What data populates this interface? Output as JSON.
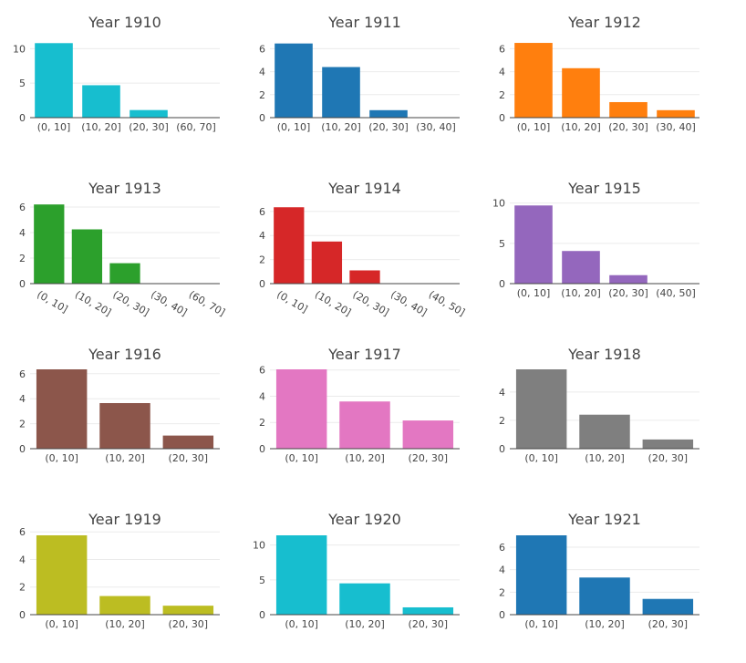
{
  "chart_data": [
    {
      "type": "bar",
      "title": "Year 1910",
      "categories": [
        "(0, 10]",
        "(10, 20]",
        "(20, 30]",
        "(60, 70]"
      ],
      "values": [
        10.8,
        4.7,
        1.1,
        0
      ],
      "ylim": [
        0,
        11.5
      ],
      "yticks": [
        0,
        5,
        10
      ],
      "color": "#17becf",
      "grid": true,
      "rotated_labels": false
    },
    {
      "type": "bar",
      "title": "Year 1911",
      "categories": [
        "(0, 10]",
        "(10, 20]",
        "(20, 30]",
        "(30, 40]"
      ],
      "values": [
        6.45,
        4.4,
        0.65,
        0
      ],
      "ylim": [
        0,
        6.9
      ],
      "yticks": [
        0,
        2,
        4,
        6
      ],
      "color": "#1f77b4",
      "grid": true,
      "rotated_labels": false
    },
    {
      "type": "bar",
      "title": "Year 1912",
      "categories": [
        "(0, 10]",
        "(10, 20]",
        "(20, 30]",
        "(30, 40]"
      ],
      "values": [
        6.5,
        4.3,
        1.35,
        0.65
      ],
      "ylim": [
        0,
        6.9
      ],
      "yticks": [
        0,
        2,
        4,
        6
      ],
      "color": "#ff7f0e",
      "grid": true,
      "rotated_labels": false
    },
    {
      "type": "bar",
      "title": "Year 1913",
      "categories": [
        "(0, 10]",
        "(10, 20]",
        "(20, 30]",
        "(30, 40]",
        "(60, 70]"
      ],
      "values": [
        6.2,
        4.25,
        1.6,
        0,
        0
      ],
      "ylim": [
        0,
        6.5
      ],
      "yticks": [
        0,
        2,
        4,
        6
      ],
      "color": "#2ca02c",
      "grid": true,
      "rotated_labels": true
    },
    {
      "type": "bar",
      "title": "Year 1914",
      "categories": [
        "(0, 10]",
        "(10, 20]",
        "(20, 30]",
        "(30, 40]",
        "(40, 50]"
      ],
      "values": [
        6.35,
        3.5,
        1.1,
        0,
        0
      ],
      "ylim": [
        0,
        6.9
      ],
      "yticks": [
        0,
        2,
        4,
        6
      ],
      "color": "#d62728",
      "grid": true,
      "rotated_labels": true
    },
    {
      "type": "bar",
      "title": "Year 1915",
      "categories": [
        "(0, 10]",
        "(10, 20]",
        "(20, 30]",
        "(40, 50]"
      ],
      "values": [
        9.7,
        4.05,
        1.05,
        0
      ],
      "ylim": [
        0,
        10.3
      ],
      "yticks": [
        0,
        5,
        10
      ],
      "color": "#9467bd",
      "grid": true,
      "rotated_labels": false
    },
    {
      "type": "bar",
      "title": "Year 1916",
      "categories": [
        "(0, 10]",
        "(10, 20]",
        "(20, 30]"
      ],
      "values": [
        6.35,
        3.65,
        1.05
      ],
      "ylim": [
        0,
        6.35
      ],
      "yticks": [
        0,
        2,
        4,
        6
      ],
      "color": "#8c564b",
      "grid": true,
      "rotated_labels": false
    },
    {
      "type": "bar",
      "title": "Year 1917",
      "categories": [
        "(0, 10]",
        "(10, 20]",
        "(20, 30]"
      ],
      "values": [
        6.05,
        3.6,
        2.15
      ],
      "ylim": [
        0,
        6.05
      ],
      "yticks": [
        0,
        2,
        4,
        6
      ],
      "color": "#e377c2",
      "grid": true,
      "rotated_labels": false
    },
    {
      "type": "bar",
      "title": "Year 1918",
      "categories": [
        "(0, 10]",
        "(10, 20]",
        "(20, 30]"
      ],
      "values": [
        5.6,
        2.4,
        0.65
      ],
      "ylim": [
        0,
        5.6
      ],
      "yticks": [
        0,
        2,
        4
      ],
      "color": "#7f7f7f",
      "grid": true,
      "rotated_labels": false
    },
    {
      "type": "bar",
      "title": "Year 1919",
      "categories": [
        "(0, 10]",
        "(10, 20]",
        "(20, 30]"
      ],
      "values": [
        5.75,
        1.35,
        0.65
      ],
      "ylim": [
        0,
        5.75
      ],
      "yticks": [
        0,
        2,
        4,
        6
      ],
      "color": "#bcbd22",
      "grid": true,
      "rotated_labels": false
    },
    {
      "type": "bar",
      "title": "Year 1920",
      "categories": [
        "(0, 10]",
        "(10, 20]",
        "(20, 30]"
      ],
      "values": [
        11.4,
        4.5,
        1.05
      ],
      "ylim": [
        0,
        11.4
      ],
      "yticks": [
        0,
        5,
        10
      ],
      "color": "#17becf",
      "grid": true,
      "rotated_labels": false
    },
    {
      "type": "bar",
      "title": "Year 1921",
      "categories": [
        "(0, 10]",
        "(10, 20]",
        "(20, 30]"
      ],
      "values": [
        7.05,
        3.3,
        1.4
      ],
      "ylim": [
        0,
        7.05
      ],
      "yticks": [
        0,
        2,
        4,
        6
      ],
      "color": "#1f77b4",
      "grid": true,
      "rotated_labels": false
    }
  ]
}
